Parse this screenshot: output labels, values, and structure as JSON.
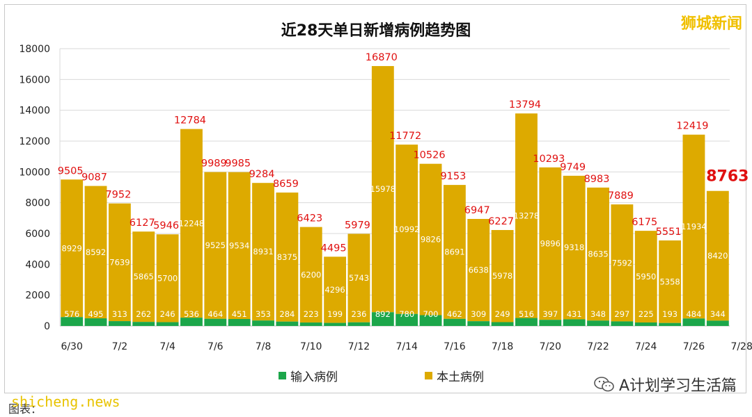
{
  "page": {
    "brand": "狮城新闻",
    "wechat_account": "A计划学习生活篇",
    "watermark": "shicheng.news",
    "caption": "图表："
  },
  "colors": {
    "imported": "#1ca64a",
    "local": "#ddaa00",
    "total_label": "#e01010",
    "bar_label": "#ffffff"
  },
  "chart_data": {
    "type": "bar",
    "stacked": true,
    "title": "近28天单日新增病例趋势图",
    "x_ticks": [
      "6/30",
      "7/2",
      "7/4",
      "7/6",
      "7/8",
      "7/10",
      "7/12",
      "7/14",
      "7/16",
      "7/18",
      "7/20",
      "7/22",
      "7/24",
      "7/26",
      "7/28"
    ],
    "ylim": [
      0,
      18000
    ],
    "yticks": [
      0,
      2000,
      4000,
      6000,
      8000,
      10000,
      12000,
      14000,
      16000,
      18000
    ],
    "grid": true,
    "legend_position": "bottom",
    "series": [
      {
        "name": "输入病例",
        "values": [
          576,
          495,
          313,
          262,
          246,
          536,
          464,
          451,
          353,
          284,
          223,
          199,
          236,
          892,
          780,
          700,
          462,
          309,
          249,
          516,
          397,
          431,
          348,
          297,
          225,
          193,
          484,
          344
        ]
      },
      {
        "name": "本土病例",
        "values": [
          8929,
          8592,
          7639,
          5865,
          5700,
          12248,
          9525,
          9534,
          8931,
          8375,
          6200,
          4296,
          5743,
          15978,
          10992,
          9826,
          8691,
          6638,
          5978,
          13278,
          9896,
          9318,
          8635,
          7592,
          5950,
          5358,
          11934,
          8420
        ]
      }
    ],
    "totals": [
      9505,
      9087,
      7952,
      6127,
      5946,
      12784,
      9989,
      9985,
      9284,
      8659,
      6423,
      4495,
      5979,
      16870,
      11772,
      10526,
      9153,
      6947,
      6227,
      13794,
      10293,
      9749,
      8983,
      7889,
      6175,
      5551,
      12419,
      8763
    ],
    "highlight_last_total": true
  }
}
